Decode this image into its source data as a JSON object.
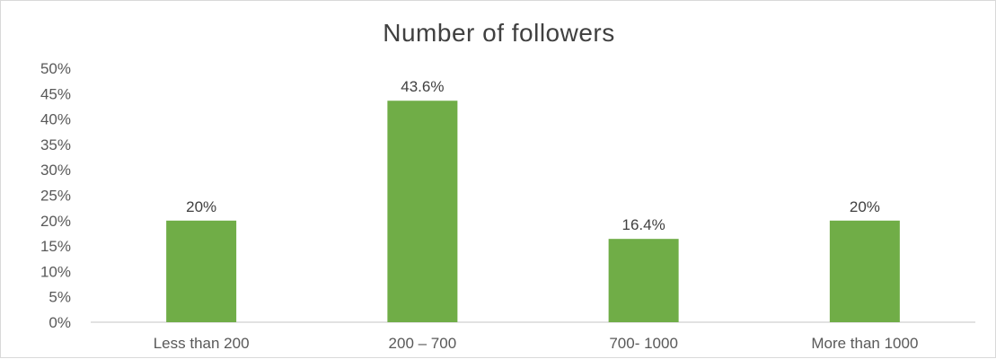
{
  "chart_data": {
    "type": "bar",
    "title": "Number of followers",
    "categories": [
      "Less than 200",
      "200 – 700",
      "700- 1000",
      "More than 1000"
    ],
    "values": [
      20,
      43.6,
      16.4,
      20
    ],
    "data_labels": [
      "20%",
      "43.6%",
      "16.4%",
      "20%"
    ],
    "ylim": [
      0,
      50
    ],
    "y_ticks": [
      0,
      5,
      10,
      15,
      20,
      25,
      30,
      35,
      40,
      45,
      50
    ],
    "y_tick_labels": [
      "0%",
      "5%",
      "10%",
      "15%",
      "20%",
      "25%",
      "30%",
      "35%",
      "40%",
      "45%",
      "50%"
    ],
    "grid": false,
    "colors": {
      "bar": "#70ad47",
      "axis": "#d9d9d9"
    }
  }
}
